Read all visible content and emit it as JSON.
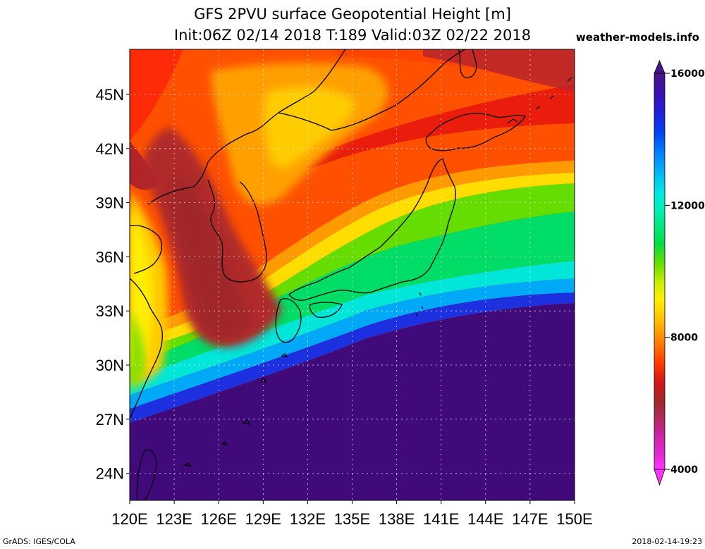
{
  "header": {
    "title_line1": "GFS 2PVU surface Geopotential Height [m]",
    "title_line2": "Init:06Z 02/14 2018 T:189 Valid:03Z 02/22 2018",
    "site": "weather-models.info"
  },
  "footer": {
    "left": "GrADS: IGES/COLA",
    "right": "2018-02-14-19:23"
  },
  "map": {
    "lon_range": [
      120,
      150
    ],
    "lat_range": [
      22.5,
      47.5
    ],
    "lon_ticks": [
      {
        "value": 120,
        "label": "120E"
      },
      {
        "value": 123,
        "label": "123E"
      },
      {
        "value": 126,
        "label": "126E"
      },
      {
        "value": 129,
        "label": "129E"
      },
      {
        "value": 132,
        "label": "132E"
      },
      {
        "value": 135,
        "label": "135E"
      },
      {
        "value": 138,
        "label": "138E"
      },
      {
        "value": 141,
        "label": "141E"
      },
      {
        "value": 144,
        "label": "144E"
      },
      {
        "value": 147,
        "label": "147E"
      },
      {
        "value": 150,
        "label": "150E"
      }
    ],
    "lat_ticks": [
      {
        "value": 45,
        "label": "45N"
      },
      {
        "value": 42,
        "label": "42N"
      },
      {
        "value": 39,
        "label": "39N"
      },
      {
        "value": 36,
        "label": "36N"
      },
      {
        "value": 33,
        "label": "33N"
      },
      {
        "value": 30,
        "label": "30N"
      },
      {
        "value": 27,
        "label": "27N"
      },
      {
        "value": 24,
        "label": "24N"
      }
    ],
    "grid": true
  },
  "colorbar": {
    "range": [
      4000,
      16000
    ],
    "labels": [
      {
        "value": 16000,
        "label": "16000"
      },
      {
        "value": 12000,
        "label": "12000"
      },
      {
        "value": 8000,
        "label": "8000"
      },
      {
        "value": 4000,
        "label": "4000"
      }
    ],
    "colors": [
      "#ff33ff",
      "#e02ad0",
      "#c8249c",
      "#b02a5c",
      "#a0282a",
      "#b82020",
      "#d01818",
      "#ec1a08",
      "#ff3c00",
      "#ff6000",
      "#ff8a00",
      "#ffaa00",
      "#ffcc00",
      "#ffee00",
      "#ddee00",
      "#aae600",
      "#66dd00",
      "#22dd22",
      "#00dd55",
      "#00e888",
      "#00eebb",
      "#00e6e6",
      "#00c4f0",
      "#00a0ff",
      "#0070ff",
      "#0044ee",
      "#2020d8",
      "#3a10b0",
      "#461486",
      "#400a7a"
    ]
  }
}
